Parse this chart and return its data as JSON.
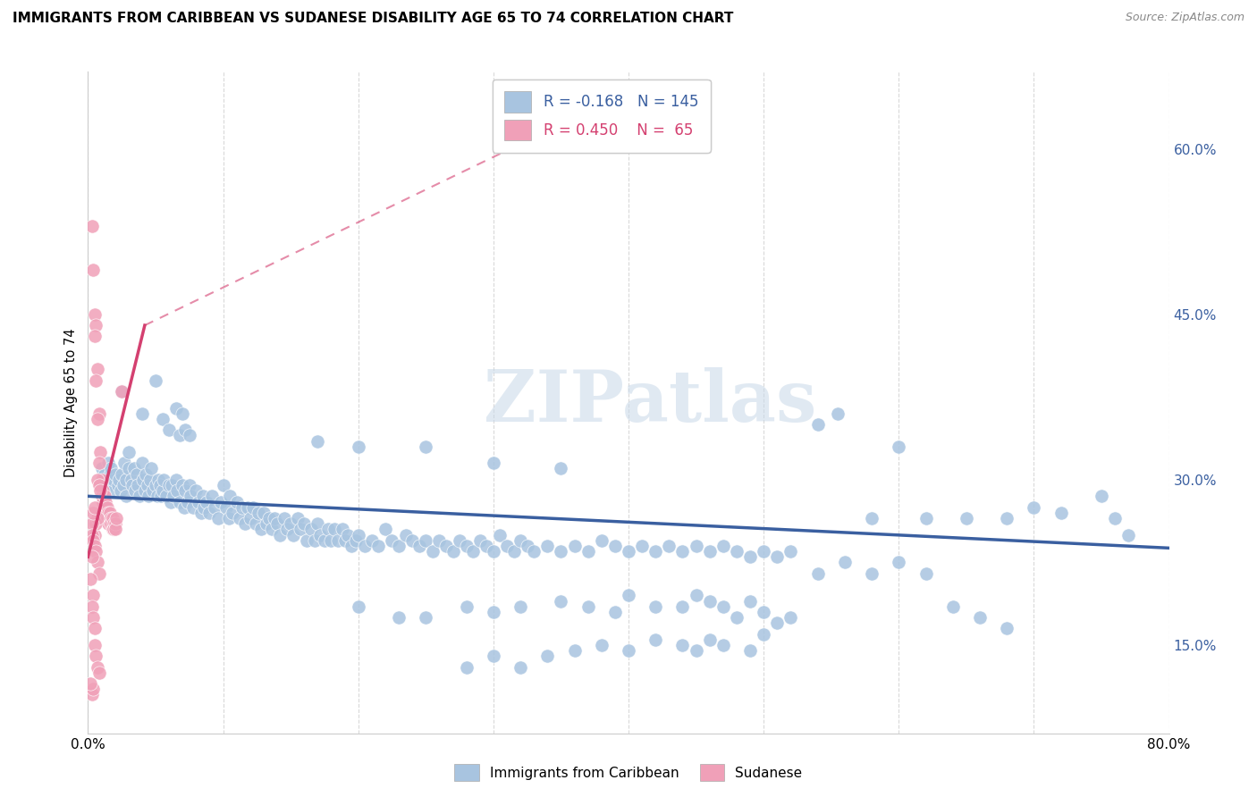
{
  "title": "IMMIGRANTS FROM CARIBBEAN VS SUDANESE DISABILITY AGE 65 TO 74 CORRELATION CHART",
  "source": "Source: ZipAtlas.com",
  "ylabel": "Disability Age 65 to 74",
  "right_yticks": [
    "60.0%",
    "45.0%",
    "30.0%",
    "15.0%"
  ],
  "right_ytick_vals": [
    0.6,
    0.45,
    0.3,
    0.15
  ],
  "legend_entries": [
    {
      "label": "Immigrants from Caribbean",
      "color": "#aec6e8",
      "R": "-0.168",
      "N": "145"
    },
    {
      "label": "Sudanese",
      "color": "#f4a7b9",
      "R": "0.450",
      "N": "65"
    }
  ],
  "caribbean_scatter": [
    [
      0.01,
      0.31
    ],
    [
      0.012,
      0.305
    ],
    [
      0.013,
      0.295
    ],
    [
      0.014,
      0.3
    ],
    [
      0.015,
      0.315
    ],
    [
      0.015,
      0.295
    ],
    [
      0.016,
      0.305
    ],
    [
      0.017,
      0.31
    ],
    [
      0.018,
      0.29
    ],
    [
      0.019,
      0.3
    ],
    [
      0.02,
      0.305
    ],
    [
      0.022,
      0.295
    ],
    [
      0.023,
      0.3
    ],
    [
      0.024,
      0.29
    ],
    [
      0.025,
      0.305
    ],
    [
      0.026,
      0.295
    ],
    [
      0.027,
      0.315
    ],
    [
      0.028,
      0.285
    ],
    [
      0.028,
      0.3
    ],
    [
      0.03,
      0.31
    ],
    [
      0.03,
      0.325
    ],
    [
      0.032,
      0.3
    ],
    [
      0.033,
      0.295
    ],
    [
      0.034,
      0.31
    ],
    [
      0.035,
      0.29
    ],
    [
      0.036,
      0.305
    ],
    [
      0.037,
      0.295
    ],
    [
      0.038,
      0.285
    ],
    [
      0.04,
      0.315
    ],
    [
      0.041,
      0.3
    ],
    [
      0.042,
      0.29
    ],
    [
      0.043,
      0.305
    ],
    [
      0.044,
      0.295
    ],
    [
      0.045,
      0.285
    ],
    [
      0.046,
      0.3
    ],
    [
      0.047,
      0.31
    ],
    [
      0.048,
      0.29
    ],
    [
      0.05,
      0.295
    ],
    [
      0.051,
      0.285
    ],
    [
      0.052,
      0.3
    ],
    [
      0.053,
      0.295
    ],
    [
      0.054,
      0.285
    ],
    [
      0.055,
      0.29
    ],
    [
      0.056,
      0.3
    ],
    [
      0.058,
      0.285
    ],
    [
      0.06,
      0.295
    ],
    [
      0.061,
      0.28
    ],
    [
      0.062,
      0.295
    ],
    [
      0.063,
      0.285
    ],
    [
      0.065,
      0.3
    ],
    [
      0.066,
      0.29
    ],
    [
      0.068,
      0.28
    ],
    [
      0.07,
      0.295
    ],
    [
      0.071,
      0.275
    ],
    [
      0.072,
      0.29
    ],
    [
      0.074,
      0.28
    ],
    [
      0.075,
      0.295
    ],
    [
      0.076,
      0.285
    ],
    [
      0.078,
      0.275
    ],
    [
      0.08,
      0.29
    ],
    [
      0.082,
      0.28
    ],
    [
      0.084,
      0.27
    ],
    [
      0.085,
      0.285
    ],
    [
      0.086,
      0.275
    ],
    [
      0.088,
      0.28
    ],
    [
      0.09,
      0.27
    ],
    [
      0.092,
      0.285
    ],
    [
      0.094,
      0.275
    ],
    [
      0.096,
      0.265
    ],
    [
      0.098,
      0.28
    ],
    [
      0.1,
      0.295
    ],
    [
      0.102,
      0.275
    ],
    [
      0.104,
      0.265
    ],
    [
      0.105,
      0.285
    ],
    [
      0.107,
      0.27
    ],
    [
      0.11,
      0.28
    ],
    [
      0.112,
      0.265
    ],
    [
      0.114,
      0.275
    ],
    [
      0.116,
      0.26
    ],
    [
      0.118,
      0.275
    ],
    [
      0.12,
      0.265
    ],
    [
      0.122,
      0.275
    ],
    [
      0.124,
      0.26
    ],
    [
      0.126,
      0.27
    ],
    [
      0.128,
      0.255
    ],
    [
      0.13,
      0.27
    ],
    [
      0.132,
      0.26
    ],
    [
      0.134,
      0.265
    ],
    [
      0.136,
      0.255
    ],
    [
      0.138,
      0.265
    ],
    [
      0.14,
      0.26
    ],
    [
      0.142,
      0.25
    ],
    [
      0.145,
      0.265
    ],
    [
      0.147,
      0.255
    ],
    [
      0.15,
      0.26
    ],
    [
      0.152,
      0.25
    ],
    [
      0.155,
      0.265
    ],
    [
      0.157,
      0.255
    ],
    [
      0.16,
      0.26
    ],
    [
      0.162,
      0.245
    ],
    [
      0.165,
      0.255
    ],
    [
      0.168,
      0.245
    ],
    [
      0.17,
      0.26
    ],
    [
      0.172,
      0.25
    ],
    [
      0.175,
      0.245
    ],
    [
      0.178,
      0.255
    ],
    [
      0.18,
      0.245
    ],
    [
      0.182,
      0.255
    ],
    [
      0.185,
      0.245
    ],
    [
      0.188,
      0.255
    ],
    [
      0.19,
      0.245
    ],
    [
      0.192,
      0.25
    ],
    [
      0.195,
      0.24
    ],
    [
      0.198,
      0.245
    ],
    [
      0.2,
      0.25
    ],
    [
      0.205,
      0.24
    ],
    [
      0.21,
      0.245
    ],
    [
      0.215,
      0.24
    ],
    [
      0.22,
      0.255
    ],
    [
      0.225,
      0.245
    ],
    [
      0.23,
      0.24
    ],
    [
      0.235,
      0.25
    ],
    [
      0.24,
      0.245
    ],
    [
      0.245,
      0.24
    ],
    [
      0.25,
      0.245
    ],
    [
      0.255,
      0.235
    ],
    [
      0.26,
      0.245
    ],
    [
      0.265,
      0.24
    ],
    [
      0.27,
      0.235
    ],
    [
      0.275,
      0.245
    ],
    [
      0.28,
      0.24
    ],
    [
      0.285,
      0.235
    ],
    [
      0.29,
      0.245
    ],
    [
      0.295,
      0.24
    ],
    [
      0.3,
      0.235
    ],
    [
      0.305,
      0.25
    ],
    [
      0.31,
      0.24
    ],
    [
      0.315,
      0.235
    ],
    [
      0.32,
      0.245
    ],
    [
      0.325,
      0.24
    ],
    [
      0.33,
      0.235
    ],
    [
      0.34,
      0.24
    ],
    [
      0.35,
      0.235
    ],
    [
      0.36,
      0.24
    ],
    [
      0.37,
      0.235
    ],
    [
      0.38,
      0.245
    ],
    [
      0.39,
      0.24
    ],
    [
      0.4,
      0.235
    ],
    [
      0.41,
      0.24
    ],
    [
      0.42,
      0.235
    ],
    [
      0.43,
      0.24
    ],
    [
      0.44,
      0.235
    ],
    [
      0.45,
      0.24
    ],
    [
      0.46,
      0.235
    ],
    [
      0.47,
      0.24
    ],
    [
      0.48,
      0.235
    ],
    [
      0.49,
      0.23
    ],
    [
      0.5,
      0.235
    ],
    [
      0.51,
      0.23
    ],
    [
      0.52,
      0.235
    ],
    [
      0.025,
      0.38
    ],
    [
      0.04,
      0.36
    ],
    [
      0.05,
      0.39
    ],
    [
      0.055,
      0.355
    ],
    [
      0.06,
      0.345
    ],
    [
      0.065,
      0.365
    ],
    [
      0.068,
      0.34
    ],
    [
      0.07,
      0.36
    ],
    [
      0.072,
      0.345
    ],
    [
      0.075,
      0.34
    ],
    [
      0.17,
      0.335
    ],
    [
      0.2,
      0.33
    ],
    [
      0.25,
      0.33
    ],
    [
      0.3,
      0.315
    ],
    [
      0.35,
      0.31
    ],
    [
      0.54,
      0.35
    ],
    [
      0.555,
      0.36
    ],
    [
      0.58,
      0.265
    ],
    [
      0.6,
      0.33
    ],
    [
      0.62,
      0.265
    ],
    [
      0.65,
      0.265
    ],
    [
      0.68,
      0.265
    ],
    [
      0.7,
      0.275
    ],
    [
      0.72,
      0.27
    ],
    [
      0.75,
      0.285
    ],
    [
      0.76,
      0.265
    ],
    [
      0.77,
      0.25
    ],
    [
      0.2,
      0.185
    ],
    [
      0.23,
      0.175
    ],
    [
      0.25,
      0.175
    ],
    [
      0.28,
      0.185
    ],
    [
      0.3,
      0.18
    ],
    [
      0.32,
      0.185
    ],
    [
      0.35,
      0.19
    ],
    [
      0.37,
      0.185
    ],
    [
      0.39,
      0.18
    ],
    [
      0.4,
      0.195
    ],
    [
      0.42,
      0.185
    ],
    [
      0.44,
      0.185
    ],
    [
      0.45,
      0.195
    ],
    [
      0.46,
      0.19
    ],
    [
      0.47,
      0.185
    ],
    [
      0.48,
      0.175
    ],
    [
      0.49,
      0.19
    ],
    [
      0.5,
      0.18
    ],
    [
      0.51,
      0.17
    ],
    [
      0.52,
      0.175
    ],
    [
      0.28,
      0.13
    ],
    [
      0.3,
      0.14
    ],
    [
      0.32,
      0.13
    ],
    [
      0.34,
      0.14
    ],
    [
      0.36,
      0.145
    ],
    [
      0.38,
      0.15
    ],
    [
      0.4,
      0.145
    ],
    [
      0.42,
      0.155
    ],
    [
      0.44,
      0.15
    ],
    [
      0.45,
      0.145
    ],
    [
      0.46,
      0.155
    ],
    [
      0.47,
      0.15
    ],
    [
      0.49,
      0.145
    ],
    [
      0.5,
      0.16
    ],
    [
      0.54,
      0.215
    ],
    [
      0.56,
      0.225
    ],
    [
      0.58,
      0.215
    ],
    [
      0.6,
      0.225
    ],
    [
      0.62,
      0.215
    ],
    [
      0.64,
      0.185
    ],
    [
      0.66,
      0.175
    ],
    [
      0.68,
      0.165
    ]
  ],
  "sudanese_scatter": [
    [
      0.003,
      0.53
    ],
    [
      0.004,
      0.49
    ],
    [
      0.005,
      0.45
    ],
    [
      0.006,
      0.44
    ],
    [
      0.005,
      0.43
    ],
    [
      0.007,
      0.4
    ],
    [
      0.006,
      0.39
    ],
    [
      0.008,
      0.36
    ],
    [
      0.007,
      0.355
    ],
    [
      0.009,
      0.325
    ],
    [
      0.008,
      0.315
    ],
    [
      0.01,
      0.3
    ],
    [
      0.009,
      0.295
    ],
    [
      0.01,
      0.285
    ],
    [
      0.011,
      0.29
    ],
    [
      0.011,
      0.28
    ],
    [
      0.012,
      0.285
    ],
    [
      0.012,
      0.275
    ],
    [
      0.013,
      0.28
    ],
    [
      0.013,
      0.27
    ],
    [
      0.014,
      0.275
    ],
    [
      0.014,
      0.265
    ],
    [
      0.015,
      0.27
    ],
    [
      0.015,
      0.26
    ],
    [
      0.016,
      0.265
    ],
    [
      0.016,
      0.27
    ],
    [
      0.017,
      0.265
    ],
    [
      0.017,
      0.26
    ],
    [
      0.018,
      0.265
    ],
    [
      0.018,
      0.255
    ],
    [
      0.019,
      0.26
    ],
    [
      0.019,
      0.255
    ],
    [
      0.02,
      0.26
    ],
    [
      0.02,
      0.255
    ],
    [
      0.021,
      0.265
    ],
    [
      0.025,
      0.38
    ],
    [
      0.007,
      0.3
    ],
    [
      0.008,
      0.295
    ],
    [
      0.009,
      0.29
    ],
    [
      0.005,
      0.25
    ],
    [
      0.006,
      0.26
    ],
    [
      0.007,
      0.265
    ],
    [
      0.003,
      0.26
    ],
    [
      0.004,
      0.27
    ],
    [
      0.005,
      0.275
    ],
    [
      0.003,
      0.25
    ],
    [
      0.004,
      0.245
    ],
    [
      0.005,
      0.24
    ],
    [
      0.006,
      0.235
    ],
    [
      0.007,
      0.225
    ],
    [
      0.008,
      0.215
    ],
    [
      0.003,
      0.23
    ],
    [
      0.002,
      0.21
    ],
    [
      0.004,
      0.195
    ],
    [
      0.003,
      0.185
    ],
    [
      0.004,
      0.175
    ],
    [
      0.005,
      0.165
    ],
    [
      0.005,
      0.15
    ],
    [
      0.006,
      0.14
    ],
    [
      0.007,
      0.13
    ],
    [
      0.003,
      0.105
    ],
    [
      0.004,
      0.11
    ],
    [
      0.008,
      0.125
    ],
    [
      0.002,
      0.115
    ]
  ],
  "caribbean_line": {
    "x": [
      0.0,
      0.8
    ],
    "y": [
      0.285,
      0.238
    ]
  },
  "sudanese_line_solid": {
    "x": [
      0.0,
      0.042
    ],
    "y": [
      0.23,
      0.44
    ]
  },
  "sudanese_line_dash": {
    "x": [
      0.042,
      0.38
    ],
    "y": [
      0.44,
      0.64
    ]
  },
  "xlim": [
    0.0,
    0.8
  ],
  "ylim": [
    0.07,
    0.67
  ],
  "watermark": "ZIPatlas",
  "background_color": "#ffffff",
  "grid_color": "#d9d9d9",
  "caribbean_color": "#a8c4e0",
  "sudanese_color": "#f0a0b8",
  "caribbean_line_color": "#3a5fa0",
  "sudanese_line_color": "#d44070",
  "title_fontsize": 11,
  "source_fontsize": 9
}
